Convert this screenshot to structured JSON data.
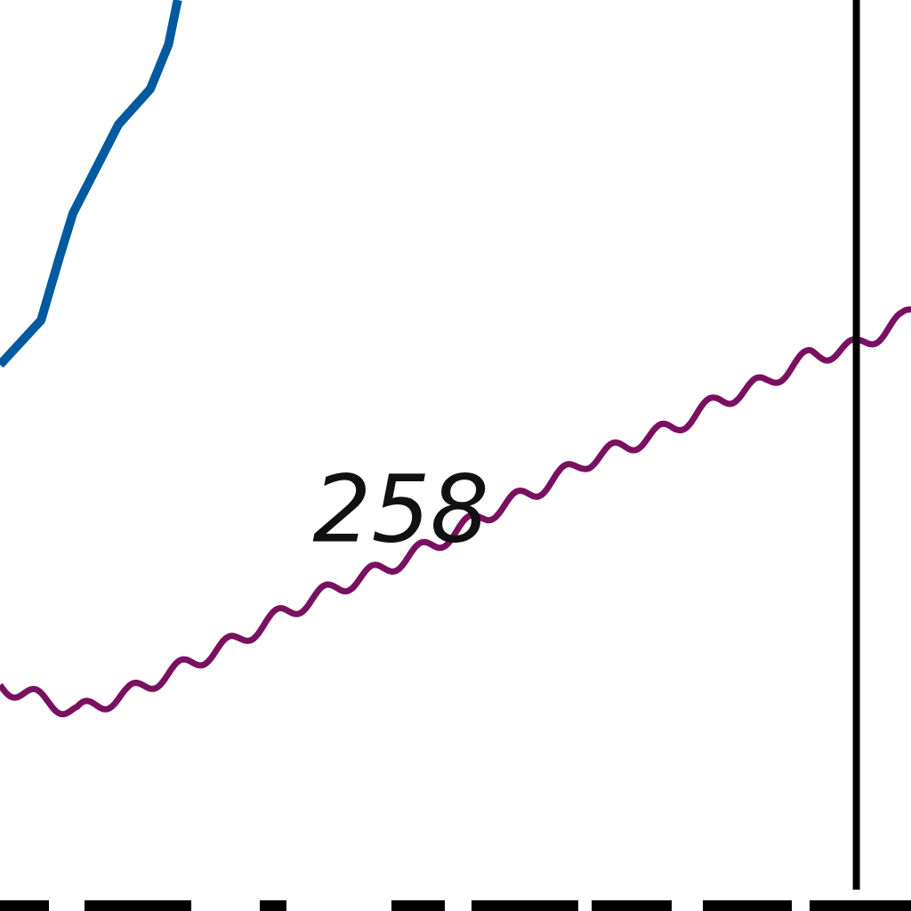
{
  "chart_data": {
    "type": "line",
    "title": "",
    "xlabel": "",
    "ylabel": "",
    "grid": false,
    "legend": "none",
    "series": [
      {
        "color": "#005aa0",
        "points": [
          [
            0.0,
            0.59
          ],
          [
            0.045,
            0.64
          ],
          [
            0.065,
            0.71
          ],
          [
            0.08,
            0.76
          ],
          [
            0.1,
            0.8
          ],
          [
            0.13,
            0.86
          ],
          [
            0.165,
            0.9
          ],
          [
            0.185,
            0.95
          ],
          [
            0.195,
            1.0
          ]
        ]
      },
      {
        "color": "#7a1060",
        "points": [
          [
            0.0,
            0.23
          ],
          [
            0.085,
            0.2
          ],
          [
            0.14,
            0.22
          ],
          [
            0.2,
            0.25
          ],
          [
            0.26,
            0.28
          ],
          [
            0.31,
            0.31
          ],
          [
            0.37,
            0.34
          ],
          [
            0.42,
            0.36
          ],
          [
            0.48,
            0.39
          ],
          [
            0.53,
            0.42
          ],
          [
            0.59,
            0.45
          ],
          [
            0.64,
            0.48
          ],
          [
            0.69,
            0.5
          ],
          [
            0.74,
            0.52
          ],
          [
            0.79,
            0.55
          ],
          [
            0.84,
            0.57
          ],
          [
            0.89,
            0.6
          ],
          [
            0.94,
            0.61
          ],
          [
            0.99,
            0.64
          ],
          [
            1.02,
            0.67
          ]
        ]
      }
    ],
    "reference_lines": [
      {
        "orientation": "vertical",
        "x": 0.94,
        "color": "#000000"
      }
    ],
    "annotations": [
      {
        "text": "258",
        "x": 0.44,
        "y": 0.42
      }
    ]
  }
}
